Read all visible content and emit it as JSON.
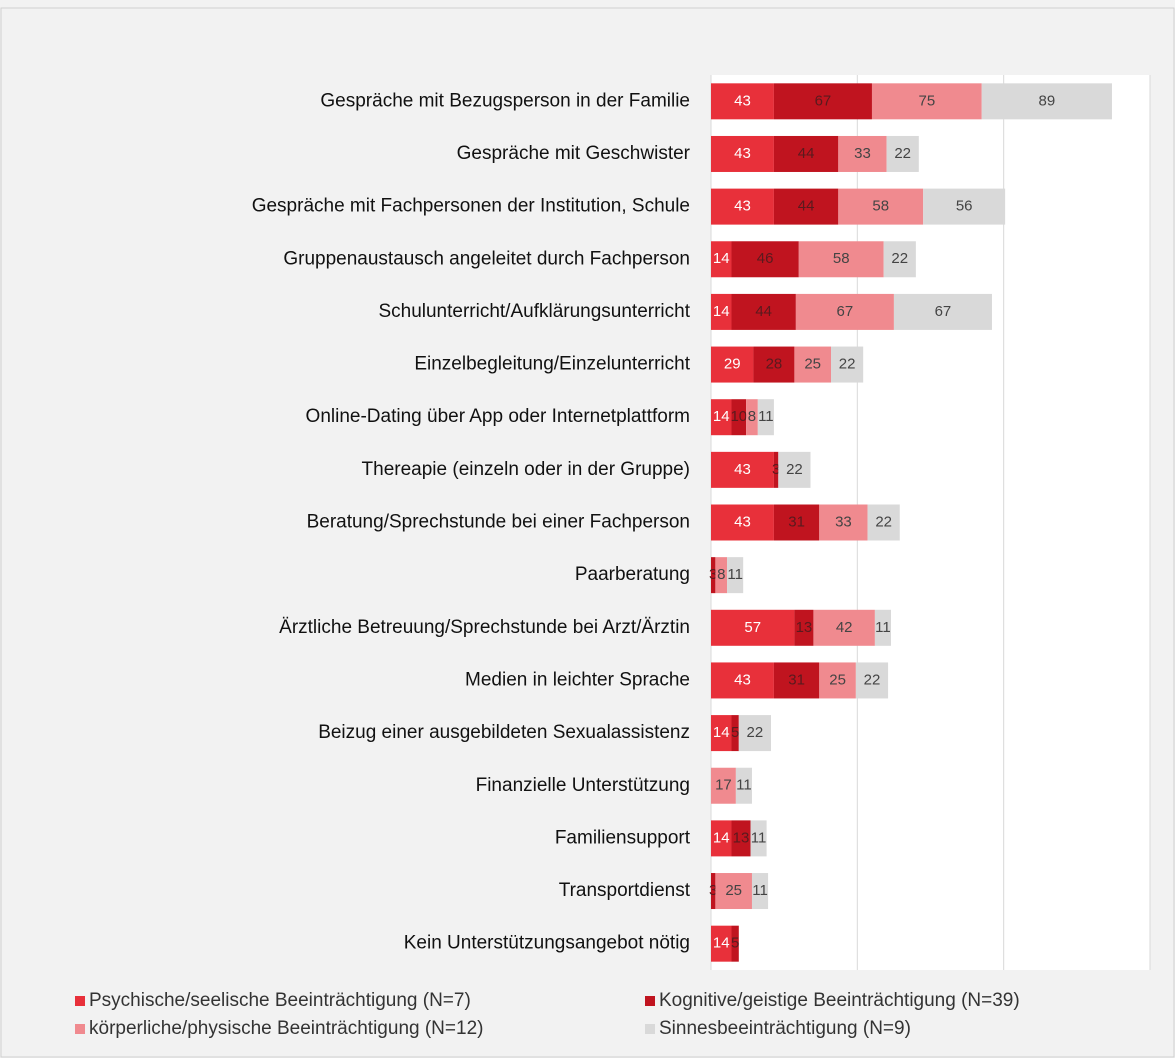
{
  "chart_data": {
    "type": "stacked_barh",
    "categories": [
      "Gespräche mit Bezugsperson in der Familie",
      "Gespräche mit Geschwister",
      "Gespräche mit Fachpersonen der Institution, Schule",
      "Gruppenaustausch angeleitet durch Fachperson",
      "Schulunterricht/Aufklärungsunterricht",
      "Einzelbegleitung/Einzelunterricht",
      "Online-Dating über App oder Internetplattform",
      "Thereapie (einzeln oder in der Gruppe)",
      "Beratung/Sprechstunde bei einer Fachperson",
      "Paarberatung",
      "Ärztliche Betreuung/Sprechstunde bei Arzt/Ärztin",
      "Medien in leichter Sprache",
      "Beizug einer ausgebildeten Sexualassistenz",
      "Finanzielle Unterstützung",
      "Familiensupport",
      "Transportdienst",
      "Kein Unterstützungsangebot nötig"
    ],
    "series": [
      {
        "name": "Psychische/seelische Beeinträchtigung (N=7)",
        "color": "#e8303a",
        "values": [
          43,
          43,
          43,
          14,
          14,
          29,
          14,
          43,
          43,
          null,
          57,
          43,
          14,
          null,
          14,
          null,
          14
        ]
      },
      {
        "name": "Kognitive/geistige Beeinträchtigung (N=39)",
        "color": "#c0141f",
        "values": [
          67,
          44,
          44,
          46,
          44,
          28,
          10,
          3,
          31,
          3,
          13,
          31,
          5,
          null,
          13,
          3,
          5
        ]
      },
      {
        "name": "körperliche/physische Beeinträchtigung (N=12)",
        "color": "#f08a8f",
        "values": [
          75,
          33,
          58,
          58,
          67,
          25,
          8,
          null,
          33,
          8,
          42,
          25,
          null,
          17,
          null,
          25,
          null
        ]
      },
      {
        "name": "Sinnesbeeinträchtigung (N=9)",
        "color": "#d9d9d9",
        "values": [
          89,
          22,
          56,
          22,
          67,
          22,
          11,
          22,
          22,
          11,
          11,
          22,
          22,
          11,
          11,
          11,
          null
        ]
      }
    ],
    "xlim": [
      0,
      300
    ],
    "xticks": [
      0,
      100,
      200,
      300
    ],
    "grid": true
  }
}
